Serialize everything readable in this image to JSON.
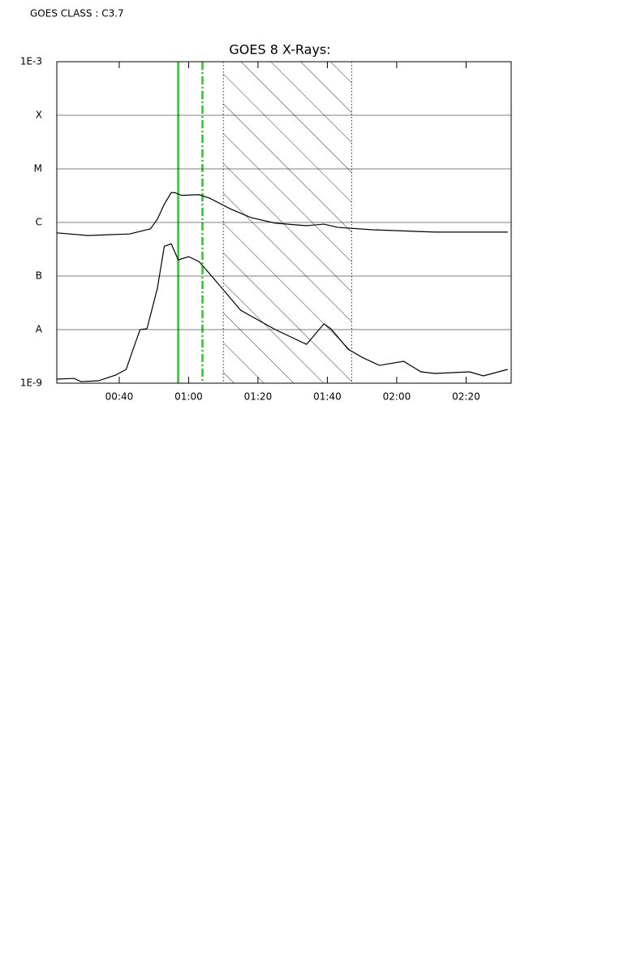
{
  "header": "GOES CLASS : C3.7",
  "chart_data": {
    "type": "line",
    "title": "GOES 8 X-Rays:",
    "ylog": true,
    "grid": true,
    "ylim": [
      1e-09,
      0.001
    ],
    "yticks": [
      {
        "value": 1e-09,
        "label": "1E-9"
      },
      {
        "value": 1e-08,
        "label": "A"
      },
      {
        "value": 1e-07,
        "label": "B"
      },
      {
        "value": 1e-06,
        "label": "C"
      },
      {
        "value": 1e-05,
        "label": "M"
      },
      {
        "value": 0.0001,
        "label": "X"
      },
      {
        "value": 0.001,
        "label": "1E-3"
      }
    ],
    "xlim": [
      "00:22",
      "02:33"
    ],
    "xticks": [
      "00:40",
      "01:00",
      "01:20",
      "01:40",
      "02:00",
      "02:20"
    ],
    "series": [
      {
        "color": "#000000",
        "x": [
          "00:22",
          "00:31",
          "00:43",
          "00:49",
          "00:51",
          "00:53",
          "00:55",
          "00:56",
          "00:58",
          "01:03",
          "01:06",
          "01:12",
          "01:18",
          "01:25",
          "01:34",
          "01:39",
          "01:43",
          "01:53",
          "02:11",
          "02:32"
        ],
        "values": [
          6.4e-07,
          5.7e-07,
          6.1e-07,
          7.6e-07,
          1.15e-06,
          2.2e-06,
          3.6e-06,
          3.6e-06,
          3.2e-06,
          3.3e-06,
          2.85e-06,
          1.8e-06,
          1.23e-06,
          9.7e-07,
          8.7e-07,
          9.3e-07,
          8.1e-07,
          7.3e-07,
          6.6e-07,
          6.6e-07
        ]
      },
      {
        "color": "#000000",
        "x": [
          "00:22",
          "00:27",
          "00:29",
          "00:34",
          "00:39",
          "00:42",
          "00:44",
          "00:46",
          "00:48",
          "00:51",
          "00:53",
          "00:55",
          "00:57",
          "01:00",
          "01:03",
          "01:09",
          "01:15",
          "01:25",
          "01:34",
          "01:39",
          "01:41",
          "01:46",
          "01:50",
          "01:55",
          "02:02",
          "02:07",
          "02:11",
          "02:21",
          "02:25",
          "02:32"
        ],
        "values": [
          1.19e-09,
          1.23e-09,
          1.07e-09,
          1.11e-09,
          1.42e-09,
          1.81e-09,
          4.3e-09,
          1e-08,
          1.04e-08,
          5.9e-08,
          3.6e-07,
          4e-07,
          2e-07,
          2.3e-07,
          1.87e-07,
          6.6e-08,
          2.3e-08,
          1e-08,
          5.3e-09,
          1.28e-08,
          1.04e-08,
          4.3e-09,
          3.05e-09,
          2.15e-09,
          2.56e-09,
          1.63e-09,
          1.52e-09,
          1.63e-09,
          1.37e-09,
          1.81e-09
        ]
      }
    ],
    "markers": [
      {
        "x": "00:57",
        "color": "#22cc22",
        "style": "solid"
      },
      {
        "x": "01:04",
        "color": "#22cc22",
        "style": "dashed"
      }
    ],
    "shaded": {
      "x": [
        "01:10",
        "01:47"
      ],
      "hatch": true
    }
  }
}
